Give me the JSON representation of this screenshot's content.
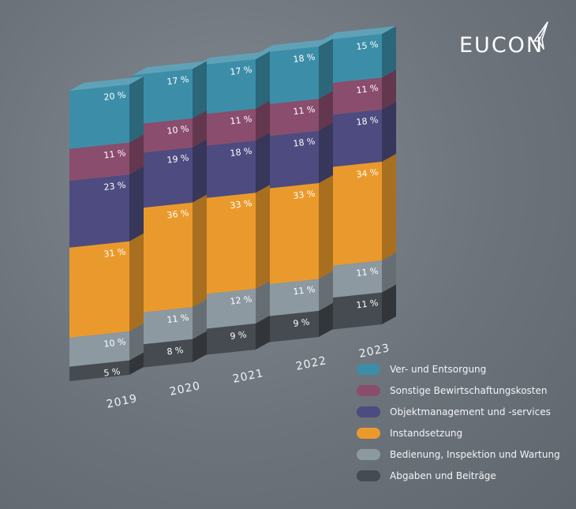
{
  "brand": {
    "logo_text": "EUCON"
  },
  "colors": {
    "ver_entsorgung": "#3c8ea8",
    "sonstige": "#8a4d6d",
    "objektmanagement": "#4d4b7f",
    "instandsetzung": "#ea9a2c",
    "bedienung": "#8d99a1",
    "abgaben": "#454b50"
  },
  "legend": [
    {
      "label": "Ver- und Entsorgung",
      "color": "#3c8ea8",
      "icon": "legend-swatch"
    },
    {
      "label": "Sonstige Bewirtschaftungskosten",
      "color": "#8a4d6d",
      "icon": "legend-swatch"
    },
    {
      "label": "Objektmanagement und -services",
      "color": "#4d4b7f",
      "icon": "legend-swatch"
    },
    {
      "label": "Instandsetzung",
      "color": "#ea9a2c",
      "icon": "legend-swatch"
    },
    {
      "label": "Bedienung, Inspektion und Wartung",
      "color": "#8d99a1",
      "icon": "legend-swatch"
    },
    {
      "label": "Abgaben und Beiträge",
      "color": "#454b50",
      "icon": "legend-swatch"
    }
  ],
  "chart_data": {
    "type": "bar",
    "stacked": true,
    "style": "3d-isometric",
    "categories": [
      "2019",
      "2020",
      "2021",
      "2022",
      "2023"
    ],
    "unit": "%",
    "series": [
      {
        "name": "Abgaben und Beiträge",
        "color": "#454b50",
        "values": [
          5,
          8,
          9,
          9,
          11
        ],
        "labels": [
          "5 %",
          "8 %",
          "9 %",
          "9 %",
          "11 %"
        ]
      },
      {
        "name": "Bedienung, Inspektion und Wartung",
        "color": "#8d99a1",
        "values": [
          10,
          11,
          12,
          11,
          11
        ],
        "labels": [
          "10 %",
          "11 %",
          "12 %",
          "11 %",
          "11 %"
        ]
      },
      {
        "name": "Instandsetzung",
        "color": "#ea9a2c",
        "values": [
          31,
          36,
          33,
          33,
          34
        ],
        "labels": [
          "31 %",
          "36 %",
          "33 %",
          "33 %",
          "34 %"
        ]
      },
      {
        "name": "Objektmanagement und -services",
        "color": "#4d4b7f",
        "values": [
          23,
          19,
          18,
          18,
          18
        ],
        "labels": [
          "23 %",
          "19 %",
          "18 %",
          "18 %",
          "18 %"
        ]
      },
      {
        "name": "Sonstige Bewirtschaftungskosten",
        "color": "#8a4d6d",
        "values": [
          11,
          10,
          11,
          11,
          11
        ],
        "labels": [
          "11 %",
          "10 %",
          "11 %",
          "11 %",
          "11 %"
        ]
      },
      {
        "name": "Ver- und Entsorgung",
        "color": "#3c8ea8",
        "values": [
          20,
          17,
          17,
          18,
          15
        ],
        "labels": [
          "20 %",
          "17 %",
          "17 %",
          "18 %",
          "15 %"
        ]
      }
    ],
    "legend_position": "bottom-right",
    "grid": false
  }
}
